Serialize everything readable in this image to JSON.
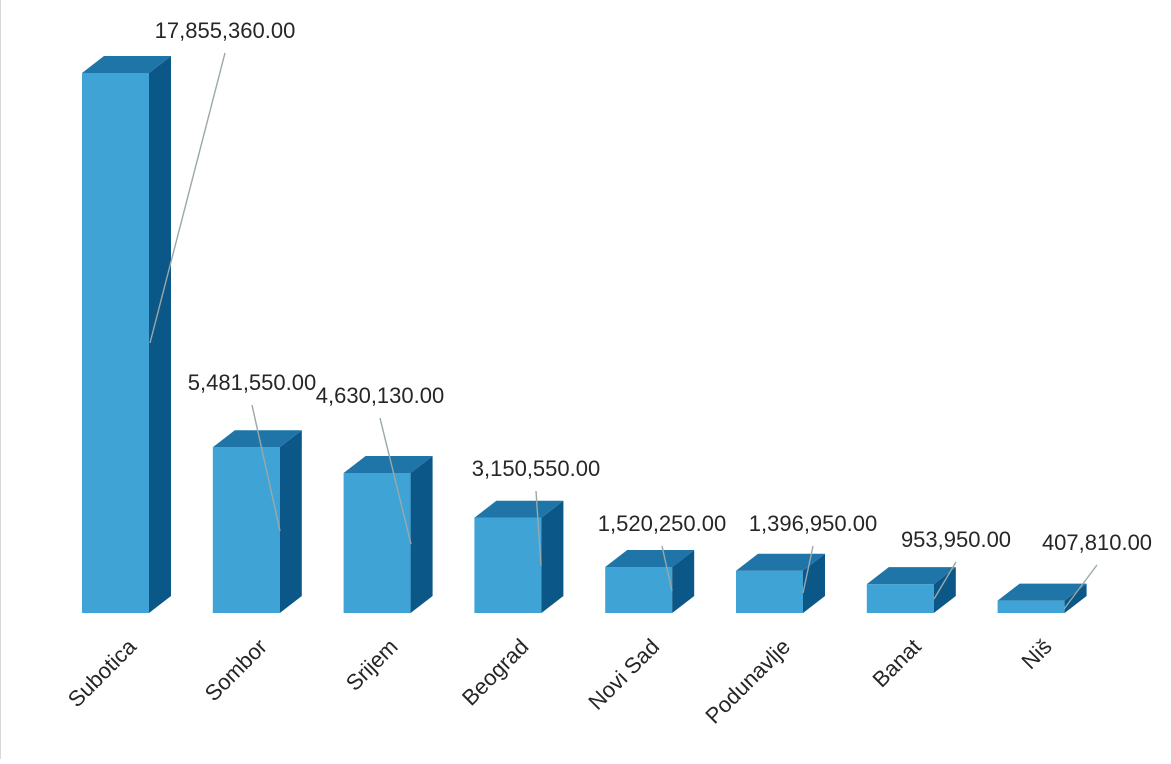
{
  "chart_data": {
    "type": "bar",
    "style": "3d-column",
    "categories": [
      "Subotica",
      "Sombor",
      "Srijem",
      "Beograd",
      "Novi Sad",
      "Podunavlje",
      "Banat",
      "Niš"
    ],
    "values": [
      17855360.0,
      5481550.0,
      4630130.0,
      3150550.0,
      1520250.0,
      1396950.0,
      953950.0,
      407810.0
    ],
    "data_labels": [
      "17,855,360.00",
      "5,481,550.00",
      "4,630,130.00",
      "3,150,550.00",
      "1,520,250.00",
      "1,396,950.00",
      "953,950.00",
      "407,810.00"
    ],
    "title": "",
    "xlabel": "",
    "ylabel": "",
    "ylim": [
      0,
      17855360
    ],
    "grid": false,
    "legend": "none",
    "colors": {
      "front": "#3fa3d6",
      "side": "#0b5787",
      "top": "#1f75a8",
      "leader_line": "#9aa8a8",
      "text": "#262626"
    }
  }
}
